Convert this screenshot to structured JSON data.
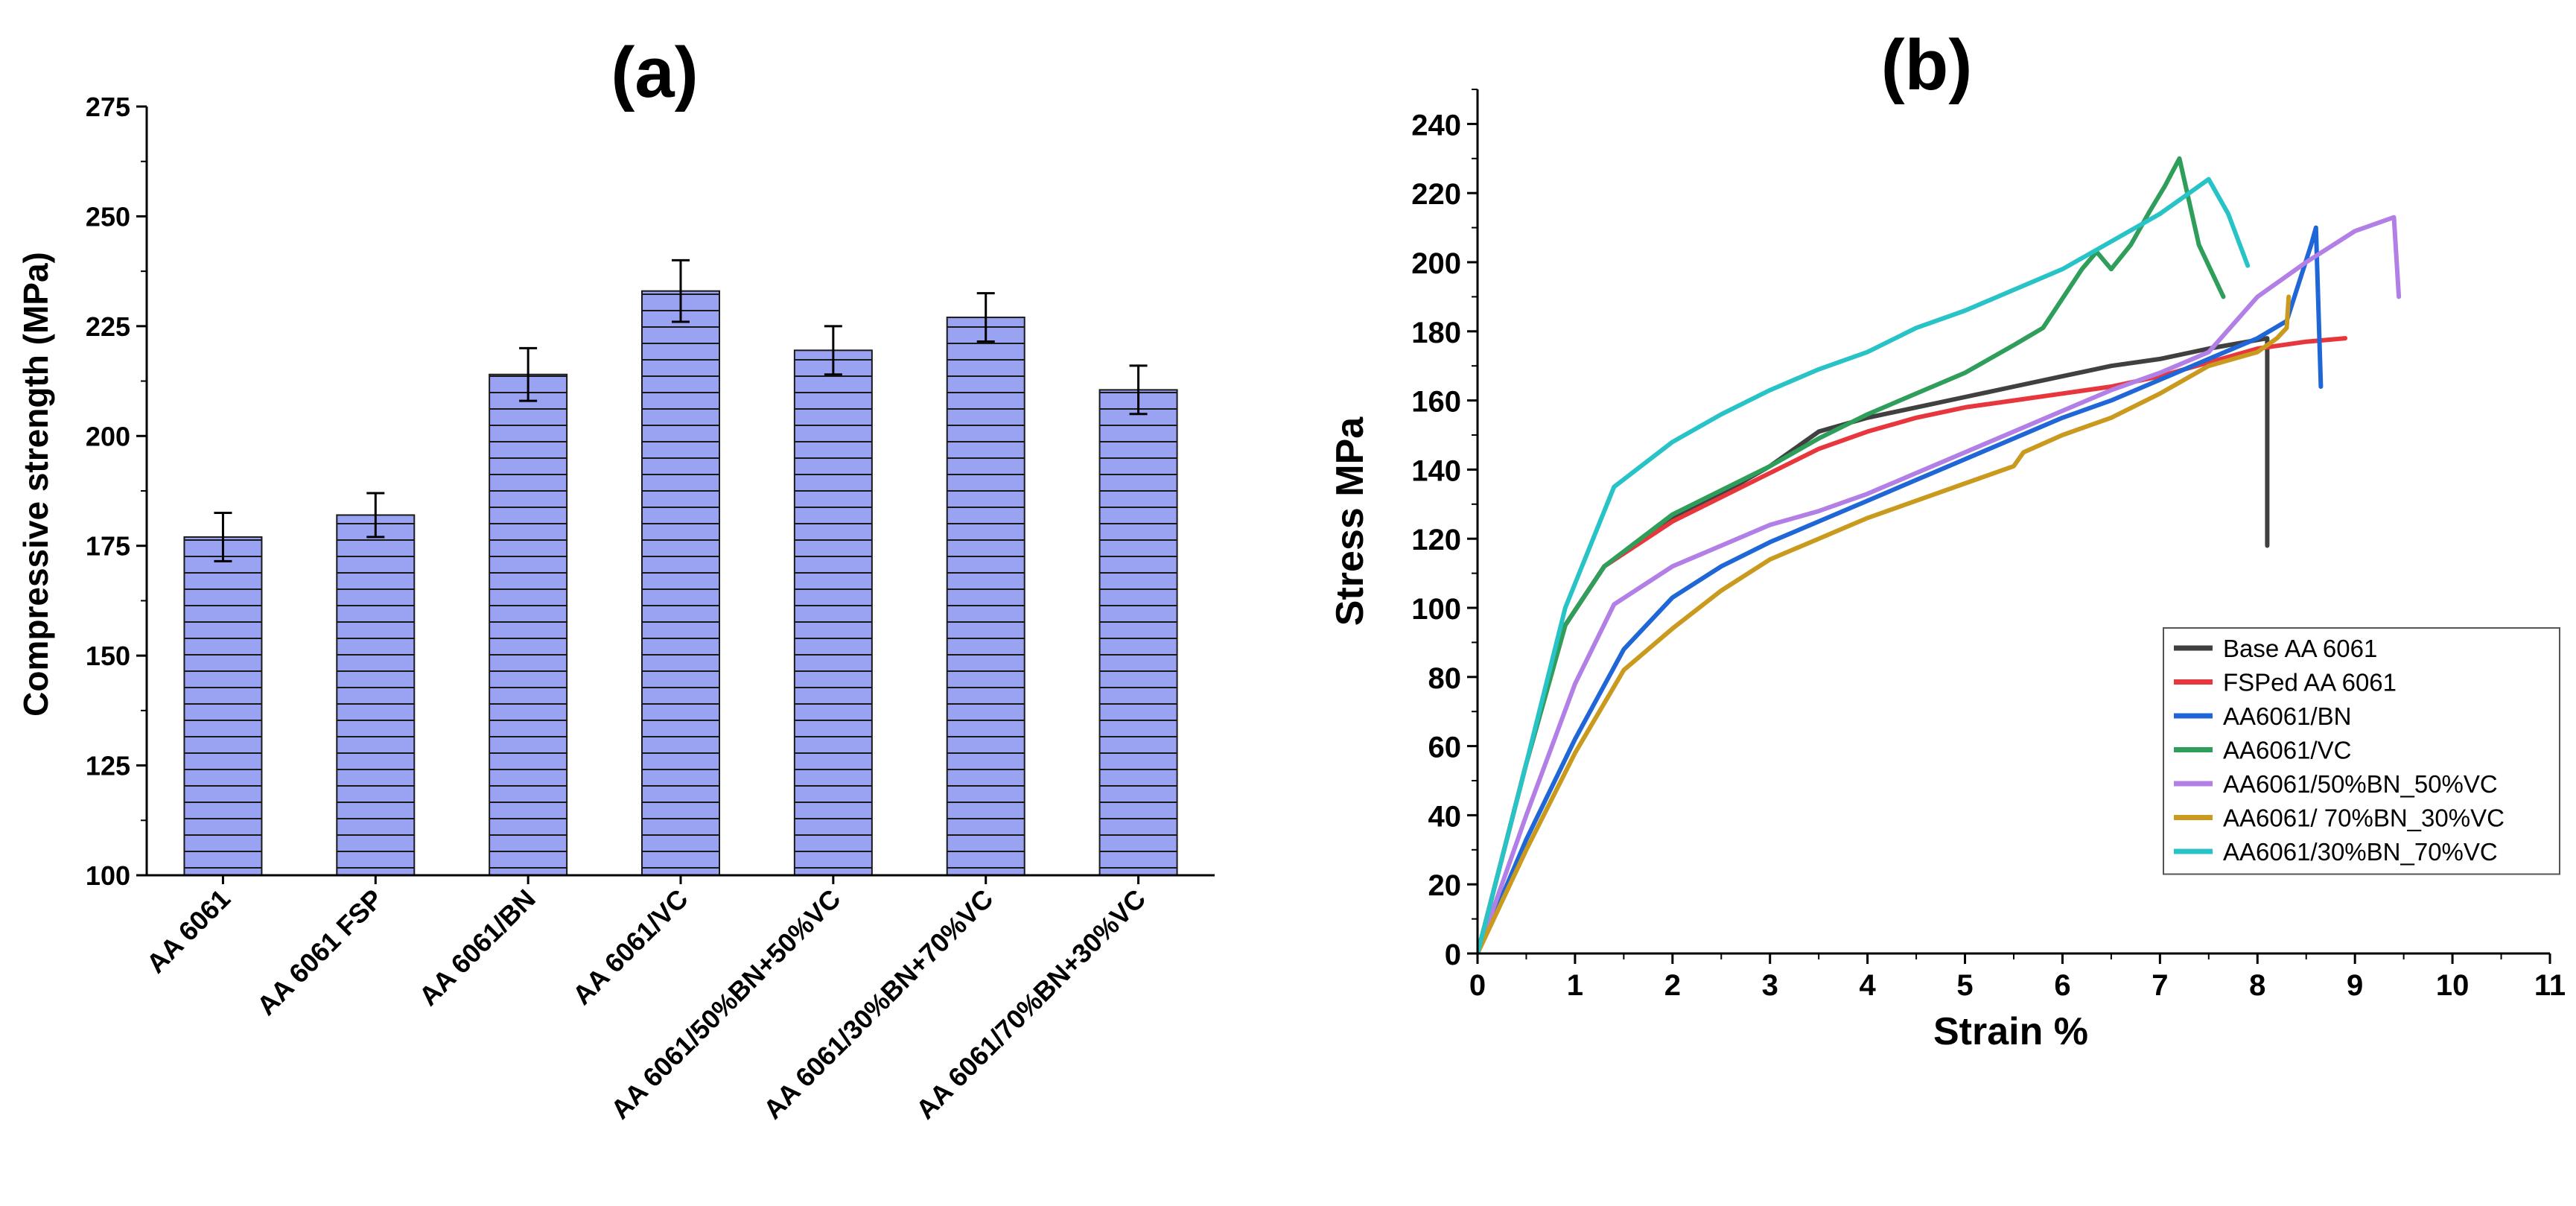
{
  "chart_data": [
    {
      "type": "bar",
      "title": "(a)",
      "xlabel": "",
      "ylabel": "Compressive  strength (MPa)",
      "ylim": [
        100,
        275
      ],
      "yticks": [
        100,
        125,
        150,
        175,
        200,
        225,
        250,
        275
      ],
      "ytick_labels": [
        "100",
        "125",
        "150",
        "175",
        "200",
        "225",
        "250",
        "275"
      ],
      "categories": [
        "AA 6061",
        "AA 6061 FSP",
        "AA 6061/BN",
        "AA 6061/VC",
        "AA 6061/50%BN+50%VC",
        "AA 6061/30%BN+70%VC",
        "AA 6061/70%BN+30%VC"
      ],
      "values": [
        177,
        182,
        214,
        233,
        219.5,
        227,
        210.5
      ],
      "errors": [
        5.5,
        5,
        6,
        7,
        5.5,
        5.5,
        5.5
      ],
      "bar_color": "#9aa2f2",
      "hatch": "horizontal lines",
      "grid": false
    },
    {
      "type": "line",
      "title": "(b)",
      "xlabel": "Strain %",
      "ylabel": "Stress MPa",
      "xlim": [
        0,
        11
      ],
      "ylim": [
        0,
        250
      ],
      "xticks": [
        0,
        1,
        2,
        3,
        4,
        5,
        6,
        7,
        8,
        9,
        10,
        11
      ],
      "xtick_labels": [
        "0",
        "1",
        "2",
        "3",
        "4",
        "5",
        "6",
        "7",
        "8",
        "9",
        "10",
        "11"
      ],
      "yticks": [
        0,
        20,
        40,
        60,
        80,
        100,
        120,
        140,
        160,
        180,
        200,
        220,
        240
      ],
      "ytick_labels": [
        "0",
        "20",
        "40",
        "60",
        "80",
        "100",
        "120",
        "140",
        "160",
        "180",
        "200",
        "220",
        "240"
      ],
      "legend_position": "bottom-right",
      "grid": false,
      "series": [
        {
          "name": "Base AA 6061",
          "color": "#404040",
          "x": [
            0,
            0.5,
            0.9,
            1.3,
            2,
            2.5,
            3,
            3.5,
            4,
            4.5,
            5,
            5.5,
            6,
            6.5,
            7,
            7.5,
            8.1,
            8.1
          ],
          "y": [
            0,
            55,
            95,
            112,
            126,
            133,
            141,
            151,
            155,
            158,
            161,
            164,
            167,
            170,
            172,
            175,
            178,
            118
          ]
        },
        {
          "name": "FSPed AA 6061",
          "color": "#e8363d",
          "x": [
            0,
            0.5,
            0.9,
            1.3,
            2,
            2.5,
            3,
            3.5,
            4,
            4.5,
            5,
            5.5,
            6,
            6.5,
            7,
            7.5,
            8,
            8.5,
            8.9
          ],
          "y": [
            0,
            55,
            95,
            112,
            125,
            132,
            139,
            146,
            151,
            155,
            158,
            160,
            162,
            164,
            167,
            171,
            175,
            177,
            178
          ]
        },
        {
          "name": "AA6061/BN",
          "color": "#1f66d6",
          "x": [
            0,
            0.5,
            1,
            1.5,
            2,
            2.5,
            3,
            3.5,
            4,
            4.5,
            5,
            5.5,
            6,
            6.5,
            7,
            7.5,
            8,
            8.3,
            8.55,
            8.6,
            8.65
          ],
          "y": [
            0,
            33,
            62,
            88,
            103,
            112,
            119,
            125,
            131,
            137,
            143,
            149,
            155,
            160,
            166,
            172,
            178,
            183,
            205,
            210,
            164
          ]
        },
        {
          "name": "AA6061/VC",
          "color": "#2e9e5a",
          "x": [
            0,
            0.5,
            0.9,
            1.3,
            2,
            2.5,
            3,
            3.5,
            4,
            4.5,
            5,
            5.5,
            5.8,
            6.2,
            6.35,
            6.5,
            6.7,
            6.9,
            7.05,
            7.2,
            7.4,
            7.65
          ],
          "y": [
            0,
            55,
            95,
            112,
            127,
            134,
            141,
            149,
            156,
            162,
            168,
            176,
            181,
            198,
            203,
            198,
            205,
            215,
            222,
            230,
            205,
            190
          ]
        },
        {
          "name": "AA6061/50%BN_50%VC",
          "color": "#b27fe6",
          "x": [
            0,
            0.5,
            1,
            1.4,
            2,
            2.5,
            3,
            3.5,
            4,
            4.5,
            5,
            5.5,
            6,
            6.5,
            7,
            7.5,
            8,
            8.5,
            9,
            9.4,
            9.45
          ],
          "y": [
            0,
            40,
            78,
            101,
            112,
            118,
            124,
            128,
            133,
            139,
            145,
            151,
            157,
            163,
            168,
            174,
            190,
            200,
            209,
            213,
            190
          ]
        },
        {
          "name": "AA6061/ 70%BN_30%VC",
          "color": "#c99a1e",
          "x": [
            0,
            0.5,
            1,
            1.5,
            2,
            2.5,
            3,
            3.5,
            4,
            4.5,
            5,
            5.5,
            5.6,
            6,
            6.5,
            7,
            7.5,
            8,
            8.2,
            8.3,
            8.32
          ],
          "y": [
            0,
            30,
            58,
            82,
            94,
            105,
            114,
            120,
            126,
            131,
            136,
            141,
            145,
            150,
            155,
            162,
            170,
            174,
            178,
            181,
            190
          ]
        },
        {
          "name": "AA6061/30%BN_70%VC",
          "color": "#27c3c6",
          "x": [
            0,
            0.5,
            0.9,
            1.4,
            2,
            2.5,
            3,
            3.5,
            4,
            4.5,
            5,
            5.5,
            6,
            6.5,
            7,
            7.5,
            7.7,
            7.9
          ],
          "y": [
            0,
            55,
            100,
            135,
            148,
            156,
            163,
            169,
            174,
            181,
            186,
            192,
            198,
            206,
            214,
            224,
            214,
            199
          ]
        }
      ]
    }
  ]
}
